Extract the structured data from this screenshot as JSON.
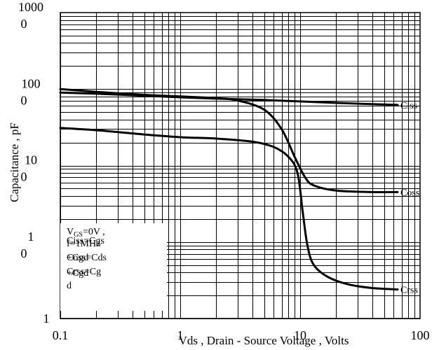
{
  "chart_data": {
    "type": "line",
    "xlabel": "Vds , Drain - Source Voltage , Volts",
    "ylabel": "Capacitance , pF",
    "x_scale": "log",
    "y_scale": "log",
    "xlim": [
      0.1,
      100
    ],
    "ylim": [
      1,
      10000
    ],
    "grid": true,
    "x_ticks": [
      "0.1",
      "1",
      "10",
      "100"
    ],
    "y_ticks": [
      {
        "line1": "1",
        "line2": ""
      },
      {
        "line1": "1",
        "line2": "0"
      },
      {
        "line1": "10",
        "line2": "0"
      },
      {
        "line1": "100",
        "line2": "0"
      },
      {
        "line1": "1000",
        "line2": "0"
      }
    ],
    "series": [
      {
        "name": "Ciss",
        "x": [
          0.1,
          0.2,
          0.5,
          1,
          2,
          5,
          10,
          20,
          65
        ],
        "y": [
          900,
          870,
          820,
          780,
          750,
          720,
          690,
          660,
          620
        ]
      },
      {
        "name": "Coss",
        "x": [
          0.1,
          0.2,
          0.5,
          1,
          2,
          3,
          5,
          7,
          9,
          11,
          13,
          20,
          40,
          65
        ],
        "y": [
          1000,
          920,
          840,
          800,
          760,
          710,
          540,
          300,
          130,
          70,
          55,
          47,
          45,
          45
        ]
      },
      {
        "name": "Crss",
        "x": [
          0.1,
          0.2,
          0.5,
          1,
          2,
          4,
          6,
          8,
          9.5,
          10.5,
          11.5,
          13,
          17,
          25,
          40,
          65
        ],
        "y": [
          310,
          290,
          255,
          235,
          225,
          205,
          175,
          130,
          80,
          25,
          9,
          5,
          3.5,
          2.8,
          2.5,
          2.4
        ]
      }
    ],
    "annotations": {
      "cond_line1": "V",
      "cond_sub": "GS",
      "cond_line1_rest": "=0V ,",
      "cond_line2": "f=1MHz",
      "eq1": "Ciss=Cgs",
      "eq1b": "+Cgd",
      "eq2": "Coss=Cds",
      "eq2b": "+Cgd",
      "eq3": "Crss=Cg",
      "eq3b": "d"
    }
  }
}
